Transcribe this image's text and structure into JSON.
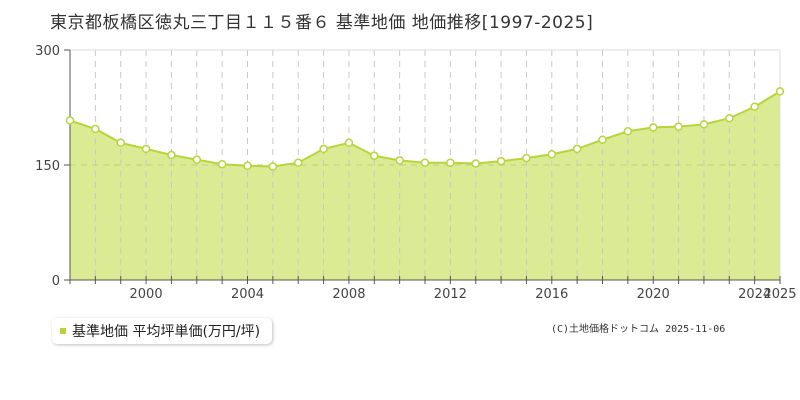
{
  "title": "東京都板橋区徳丸三丁目１１５番６ 基準地価 地価推移[1997-2025]",
  "legend": {
    "label": "基準地価 平均坪単価(万円/坪)",
    "color": "#b7d53b"
  },
  "copyright": "(C)土地価格ドットコム 2025-11-06",
  "colors": {
    "fill": "#dbeb94",
    "line": "#b7d53b",
    "grid": "#c8c8c8",
    "axis": "#555555"
  },
  "chart_data": {
    "type": "area",
    "title": "東京都板橋区徳丸三丁目１１５番６ 基準地価 地価推移[1997-2025]",
    "xlabel": "",
    "ylabel": "",
    "ylim": [
      0,
      300
    ],
    "xlim": [
      1997,
      2025
    ],
    "yticks": [
      0,
      150,
      300
    ],
    "xtick_labels": [
      "2000",
      "2004",
      "2008",
      "2012",
      "2016",
      "2020",
      "2024",
      "2025"
    ],
    "grid": true,
    "legend_position": "bottom-left",
    "series": [
      {
        "name": "基準地価 平均坪単価(万円/坪)",
        "x": [
          1997,
          1998,
          1999,
          2000,
          2001,
          2002,
          2003,
          2004,
          2005,
          2006,
          2007,
          2008,
          2009,
          2010,
          2011,
          2012,
          2013,
          2014,
          2015,
          2016,
          2017,
          2018,
          2019,
          2020,
          2021,
          2022,
          2023,
          2024,
          2025
        ],
        "values": [
          208,
          197,
          179,
          171,
          163,
          157,
          151,
          149,
          148,
          153,
          171,
          179,
          162,
          156,
          153,
          153,
          152,
          155,
          159,
          164,
          171,
          183,
          194,
          199,
          200,
          203,
          211,
          226,
          246
        ]
      }
    ]
  }
}
